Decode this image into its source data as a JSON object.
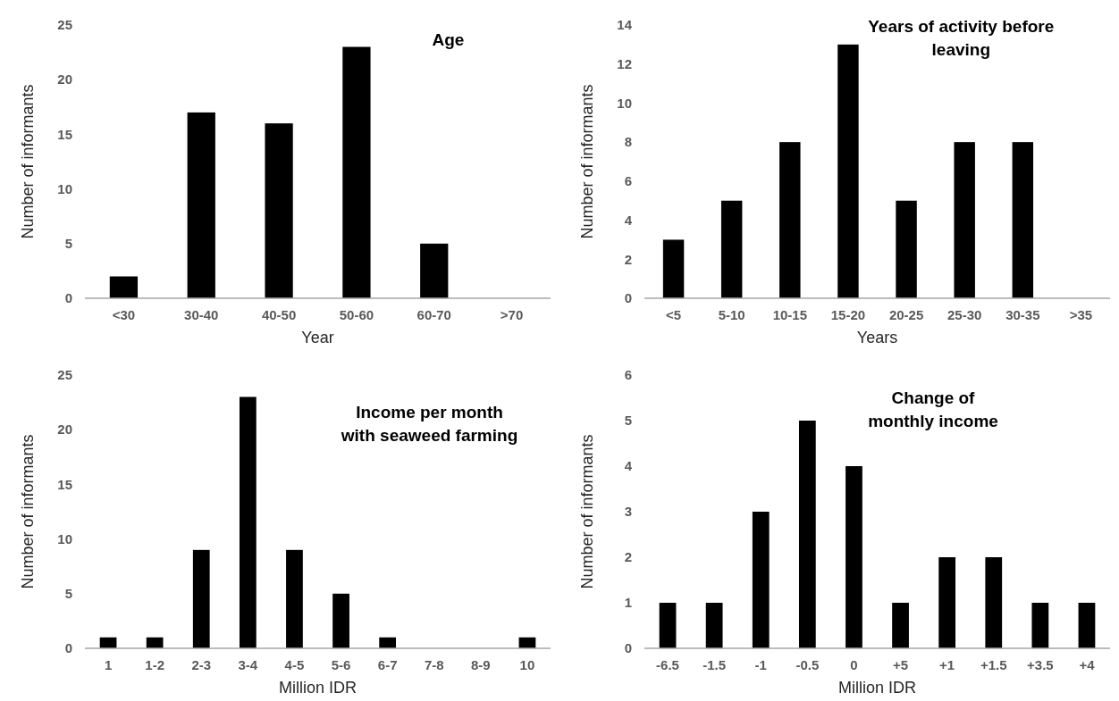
{
  "chart_data": [
    {
      "type": "bar",
      "title": "Age",
      "xlabel": "Year",
      "ylabel": "Number of informants",
      "categories": [
        "<30",
        "30-40",
        "40-50",
        "50-60",
        "60-70",
        ">70"
      ],
      "values": [
        2,
        17,
        16,
        23,
        5,
        0
      ],
      "color": "#000000",
      "ylim": [
        0,
        25
      ],
      "yticks": [
        0,
        5,
        10,
        15,
        20,
        25
      ]
    },
    {
      "type": "bar",
      "title": "Years of activity before leaving",
      "xlabel": "Years",
      "ylabel": "Number of informants",
      "categories": [
        "<5",
        "5-10",
        "10-15",
        "15-20",
        "20-25",
        "25-30",
        "30-35",
        ">35"
      ],
      "values": [
        3,
        5,
        8,
        13,
        5,
        8,
        8,
        0
      ],
      "color": "#000000",
      "ylim": [
        0,
        14
      ],
      "yticks": [
        0,
        2,
        4,
        6,
        8,
        10,
        12,
        14
      ]
    },
    {
      "type": "bar",
      "title": "Income per month with seaweed farming",
      "xlabel": "Million IDR",
      "ylabel": "Number of informants",
      "categories": [
        "1",
        "1-2",
        "2-3",
        "3-4",
        "4-5",
        "5-6",
        "6-7",
        "7-8",
        "8-9",
        "10"
      ],
      "values": [
        1,
        1,
        9,
        23,
        9,
        5,
        1,
        0,
        0,
        1
      ],
      "color": "#000000",
      "ylim": [
        0,
        25
      ],
      "yticks": [
        0,
        5,
        10,
        15,
        20,
        25
      ]
    },
    {
      "type": "bar",
      "title": "Change of monthly income",
      "xlabel": "Million IDR",
      "ylabel": "Number of informants",
      "categories": [
        "-6.5",
        "-1.5",
        "-1",
        "-0.5",
        "0",
        "+5",
        "+1",
        "+1.5",
        "+3.5",
        "+4"
      ],
      "values": [
        1,
        1,
        3,
        5,
        4,
        1,
        2,
        2,
        1,
        1
      ],
      "color": "#000000",
      "ylim": [
        0,
        6
      ],
      "yticks": [
        0,
        1,
        2,
        3,
        4,
        5,
        6
      ]
    }
  ]
}
